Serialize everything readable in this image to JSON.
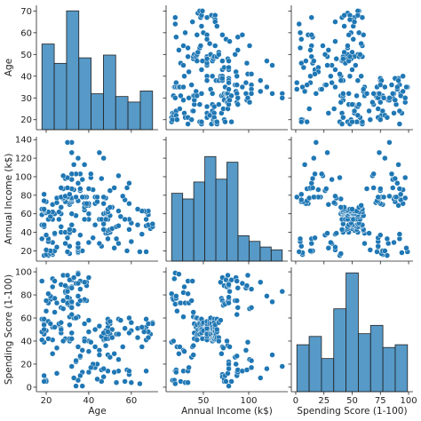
{
  "chart_data": {
    "type": "pairplot",
    "color": "#1f77b4",
    "variables": [
      "Age",
      "Annual Income (k$)",
      "Spending Score (1-100)"
    ],
    "lims": [
      [
        15.4,
        72.6
      ],
      [
        8.9,
        143.1
      ],
      [
        -3.9,
        103.9
      ]
    ],
    "xticks": [
      [
        20,
        40,
        60
      ],
      [
        50,
        100
      ],
      [
        0,
        25,
        50,
        75,
        100
      ]
    ],
    "yticks": [
      [
        20,
        30,
        40,
        50,
        60,
        70
      ],
      [
        20,
        40,
        60,
        80,
        100,
        120,
        140
      ],
      [
        0,
        20,
        40,
        60,
        80,
        100
      ]
    ],
    "columns": [
      [
        19,
        21,
        20,
        23,
        31,
        22,
        35,
        23,
        64,
        30,
        67,
        35,
        58,
        24,
        37,
        22,
        35,
        20,
        52,
        35,
        35,
        25,
        46,
        31,
        54,
        29,
        45,
        35,
        40,
        23,
        60,
        21,
        53,
        18,
        49,
        21,
        42,
        30,
        36,
        20,
        65,
        24,
        48,
        31,
        49,
        24,
        50,
        27,
        29,
        31,
        49,
        33,
        31,
        59,
        50,
        47,
        51,
        69,
        27,
        53,
        70,
        19,
        67,
        54,
        63,
        18,
        43,
        68,
        19,
        32,
        70,
        47,
        60,
        60,
        59,
        26,
        45,
        40,
        23,
        49,
        57,
        38,
        67,
        46,
        21,
        48,
        55,
        22,
        34,
        50,
        68,
        18,
        48,
        40,
        32,
        24,
        47,
        27,
        48,
        20,
        23,
        49,
        67,
        26,
        49,
        21,
        66,
        54,
        68,
        66,
        65,
        19,
        38,
        19,
        18,
        19,
        63,
        49,
        51,
        50,
        27,
        38,
        40,
        39,
        23,
        31,
        43,
        40,
        59,
        38,
        47,
        39,
        25,
        31,
        20,
        29,
        44,
        32,
        19,
        35,
        57,
        32,
        28,
        32,
        25,
        28,
        48,
        32,
        34,
        34,
        43,
        39,
        44,
        38,
        47,
        27,
        37,
        30,
        34,
        30,
        56,
        29,
        19,
        31,
        50,
        36,
        42,
        33,
        36,
        32,
        40,
        28,
        36,
        36,
        52,
        30,
        58,
        27,
        59,
        35,
        37,
        32,
        46,
        29,
        41,
        30,
        54,
        28,
        41,
        36,
        34,
        32,
        33,
        38,
        47,
        35,
        45,
        32,
        32,
        30
      ],
      [
        15,
        15,
        16,
        16,
        17,
        17,
        18,
        18,
        19,
        19,
        19,
        19,
        20,
        20,
        20,
        20,
        21,
        21,
        23,
        23,
        24,
        24,
        25,
        25,
        28,
        28,
        28,
        28,
        29,
        29,
        30,
        30,
        33,
        33,
        33,
        33,
        34,
        34,
        37,
        37,
        38,
        38,
        39,
        39,
        39,
        39,
        40,
        40,
        40,
        40,
        42,
        42,
        43,
        43,
        43,
        43,
        44,
        44,
        46,
        46,
        46,
        46,
        47,
        47,
        48,
        48,
        48,
        48,
        48,
        48,
        49,
        49,
        50,
        50,
        54,
        54,
        54,
        54,
        54,
        54,
        54,
        54,
        54,
        54,
        54,
        54,
        57,
        57,
        58,
        58,
        59,
        59,
        60,
        60,
        60,
        60,
        60,
        60,
        61,
        61,
        62,
        62,
        62,
        62,
        62,
        62,
        63,
        63,
        63,
        63,
        63,
        63,
        64,
        64,
        65,
        65,
        65,
        65,
        67,
        67,
        67,
        67,
        69,
        69,
        70,
        70,
        71,
        71,
        71,
        71,
        71,
        71,
        72,
        72,
        73,
        73,
        73,
        73,
        74,
        74,
        75,
        75,
        76,
        76,
        77,
        77,
        77,
        77,
        78,
        78,
        78,
        78,
        78,
        78,
        78,
        78,
        78,
        78,
        78,
        78,
        79,
        79,
        81,
        81,
        85,
        85,
        86,
        86,
        87,
        87,
        87,
        87,
        87,
        87,
        88,
        88,
        88,
        88,
        93,
        93,
        97,
        97,
        98,
        98,
        99,
        99,
        101,
        101,
        103,
        103,
        103,
        103,
        113,
        113,
        120,
        120,
        126,
        126,
        137,
        137
      ],
      [
        39,
        81,
        6,
        77,
        40,
        76,
        6,
        94,
        3,
        72,
        14,
        99,
        15,
        77,
        13,
        79,
        35,
        66,
        29,
        98,
        35,
        73,
        5,
        73,
        14,
        82,
        32,
        61,
        31,
        87,
        4,
        73,
        4,
        92,
        14,
        81,
        17,
        73,
        26,
        75,
        35,
        92,
        36,
        61,
        28,
        65,
        55,
        47,
        42,
        42,
        52,
        60,
        54,
        60,
        45,
        41,
        50,
        46,
        51,
        46,
        56,
        55,
        52,
        59,
        51,
        59,
        50,
        48,
        59,
        47,
        55,
        42,
        49,
        56,
        47,
        54,
        53,
        48,
        52,
        42,
        51,
        55,
        41,
        44,
        57,
        46,
        58,
        55,
        60,
        46,
        55,
        41,
        49,
        40,
        42,
        52,
        47,
        50,
        42,
        49,
        41,
        48,
        59,
        55,
        56,
        42,
        50,
        46,
        43,
        48,
        52,
        54,
        42,
        46,
        48,
        50,
        43,
        59,
        43,
        57,
        56,
        40,
        58,
        91,
        29,
        77,
        35,
        95,
        11,
        75,
        9,
        75,
        34,
        71,
        5,
        88,
        7,
        73,
        10,
        72,
        5,
        93,
        40,
        87,
        12,
        97,
        36,
        74,
        22,
        90,
        17,
        88,
        20,
        76,
        16,
        89,
        1,
        78,
        1,
        73,
        35,
        83,
        5,
        93,
        26,
        75,
        20,
        95,
        27,
        63,
        13,
        75,
        10,
        92,
        13,
        86,
        15,
        69,
        14,
        90,
        32,
        86,
        15,
        88,
        39,
        97,
        24,
        68,
        17,
        85,
        23,
        69,
        8,
        91,
        16,
        79,
        28,
        74,
        18,
        83
      ]
    ],
    "histograms": [
      {
        "bins": [
          18,
          23.78,
          29.56,
          35.33,
          41.11,
          46.89,
          52.67,
          58.44,
          64.22,
          70
        ],
        "counts": [
          31,
          24,
          43,
          26,
          13,
          27,
          12,
          10,
          14
        ],
        "ylim": [
          0,
          45
        ]
      },
      {
        "bins": [
          15,
          27.2,
          39.4,
          51.6,
          63.8,
          76,
          88.2,
          100.4,
          112.6,
          124.8,
          137
        ],
        "counts": [
          24,
          22,
          28,
          37,
          29,
          35,
          9,
          7,
          5,
          4
        ],
        "ylim": [
          0,
          44
        ]
      },
      {
        "bins": [
          1,
          11.89,
          22.78,
          33.67,
          44.56,
          55.44,
          66.33,
          77.22,
          88.11,
          99
        ],
        "counts": [
          17,
          20,
          12,
          30,
          43,
          21,
          24,
          16,
          17
        ],
        "ylim": [
          0,
          45
        ]
      }
    ]
  }
}
